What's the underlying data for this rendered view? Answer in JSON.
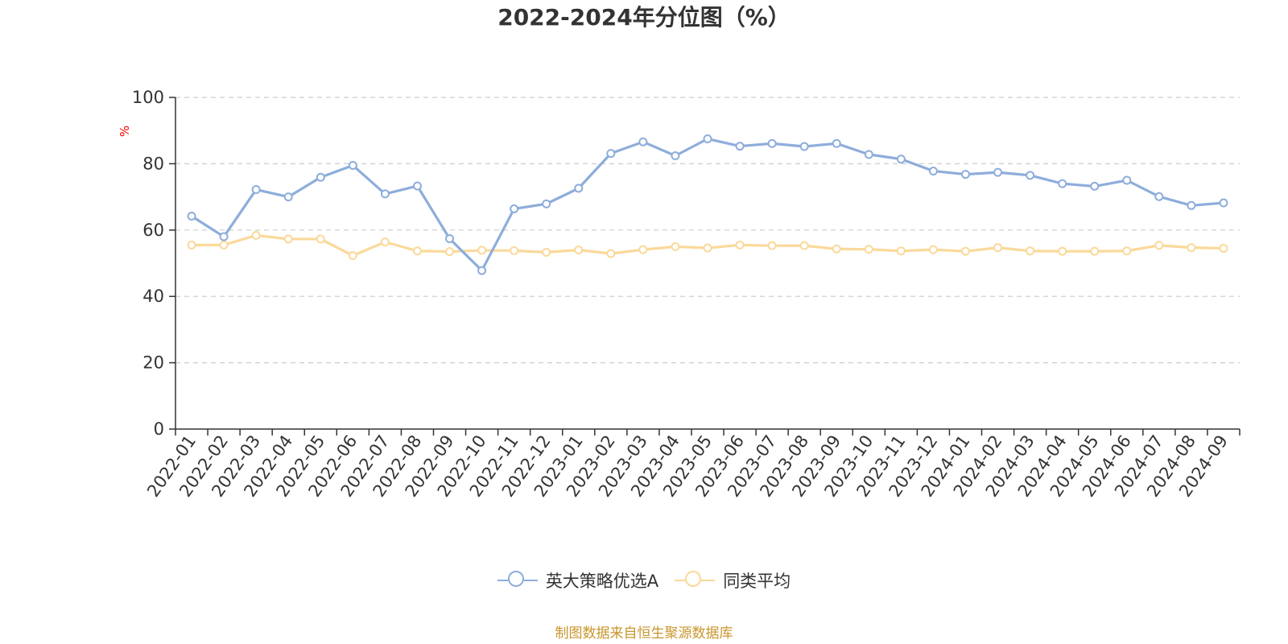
{
  "chart_data": {
    "type": "line",
    "title": "2022-2024年分位图（%）",
    "ylabel": "%",
    "ylim": [
      0,
      100
    ],
    "yticks": [
      0,
      20,
      40,
      60,
      80,
      100
    ],
    "grid": "horizontal-dashed",
    "legend_position": "bottom-center",
    "categories": [
      "2022-01",
      "2022-02",
      "2022-03",
      "2022-04",
      "2022-05",
      "2022-06",
      "2022-07",
      "2022-08",
      "2022-09",
      "2022-10",
      "2022-11",
      "2022-12",
      "2023-01",
      "2023-02",
      "2023-03",
      "2023-04",
      "2023-05",
      "2023-06",
      "2023-07",
      "2023-08",
      "2023-09",
      "2023-10",
      "2023-11",
      "2023-12",
      "2024-01",
      "2024-02",
      "2024-03",
      "2024-04",
      "2024-05",
      "2024-06",
      "2024-07",
      "2024-08",
      "2024-09"
    ],
    "series": [
      {
        "name": "英大策略优选A",
        "color": "#8eaddb",
        "values": [
          64.2,
          58.0,
          72.2,
          70.0,
          75.9,
          79.5,
          70.9,
          73.3,
          57.4,
          47.8,
          66.4,
          67.9,
          72.6,
          83.1,
          86.6,
          82.4,
          87.5,
          85.3,
          86.1,
          85.2,
          86.1,
          82.8,
          81.4,
          77.8,
          76.8,
          77.4,
          76.5,
          74.0,
          73.2,
          75.0,
          70.1,
          67.4,
          68.2
        ]
      },
      {
        "name": "同类平均",
        "color": "#fad99a",
        "values": [
          55.5,
          55.5,
          58.4,
          57.3,
          57.3,
          52.3,
          56.4,
          53.7,
          53.5,
          53.9,
          53.8,
          53.3,
          54.0,
          52.9,
          54.1,
          55.0,
          54.6,
          55.5,
          55.3,
          55.3,
          54.3,
          54.2,
          53.7,
          54.1,
          53.6,
          54.7,
          53.7,
          53.6,
          53.6,
          53.7,
          55.4,
          54.7,
          54.5
        ]
      }
    ]
  },
  "footer": {
    "source": "制图数据来自恒生聚源数据库"
  },
  "colors": {
    "axis": "#333333",
    "grid": "#cccccc",
    "unit_label": "#ff0000",
    "source_text": "#c8962d"
  }
}
